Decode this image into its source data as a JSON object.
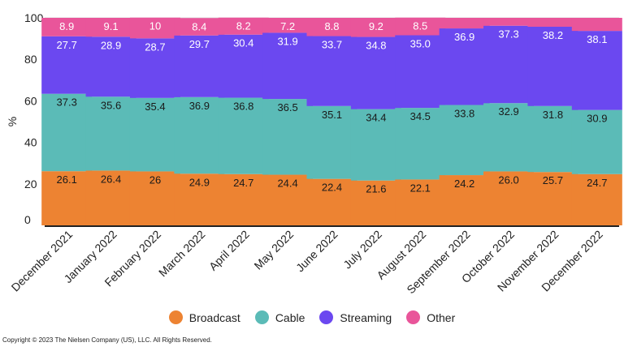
{
  "chart_data": {
    "type": "bar",
    "stacked": true,
    "ylabel": "%",
    "ylim": [
      0,
      100
    ],
    "yticks": [
      0,
      20,
      40,
      60,
      80,
      100
    ],
    "grid": true,
    "legend_position": "bottom",
    "categories": [
      "December 2021",
      "January 2022",
      "February 2022",
      "March 2022",
      "April 2022",
      "May 2022",
      "June 2022",
      "July 2022",
      "August 2022",
      "September 2022",
      "October 2022",
      "November 2022",
      "December 2022"
    ],
    "series": [
      {
        "name": "Broadcast",
        "color": "#ED8332",
        "label_color": "#1a1a1a",
        "values": [
          26.1,
          26.4,
          26,
          24.9,
          24.7,
          24.4,
          22.4,
          21.6,
          22.1,
          24.2,
          26.0,
          25.7,
          24.7
        ],
        "labels": [
          "26.1",
          "26.4",
          "26",
          "24.9",
          "24.7",
          "24.4",
          "22.4",
          "21.6",
          "22.1",
          "24.2",
          "26.0",
          "25.7",
          "24.7"
        ]
      },
      {
        "name": "Cable",
        "color": "#5BBBB7",
        "label_color": "#1a1a1a",
        "values": [
          37.3,
          35.6,
          35.4,
          36.9,
          36.8,
          36.5,
          35.1,
          34.4,
          34.5,
          33.8,
          32.9,
          31.8,
          30.9
        ],
        "labels": [
          "37.3",
          "35.6",
          "35.4",
          "36.9",
          "36.8",
          "36.5",
          "35.1",
          "34.4",
          "34.5",
          "33.8",
          "32.9",
          "31.8",
          "30.9"
        ]
      },
      {
        "name": "Streaming",
        "color": "#6B48F0",
        "label_color": "#ffffff",
        "values": [
          27.7,
          28.9,
          28.7,
          29.7,
          30.4,
          31.9,
          33.7,
          34.8,
          35.0,
          36.9,
          37.3,
          38.2,
          38.1
        ],
        "labels": [
          "27.7",
          "28.9",
          "28.7",
          "29.7",
          "30.4",
          "31.9",
          "33.7",
          "34.8",
          "35.0",
          "36.9",
          "37.3",
          "38.2",
          "38.1"
        ]
      },
      {
        "name": "Other",
        "color": "#E9559A",
        "label_color": "#ffffff",
        "values": [
          8.9,
          9.1,
          10,
          8.4,
          8.2,
          7.2,
          8.8,
          9.2,
          8.5,
          5.1,
          3.8,
          4.3,
          6.3
        ],
        "labels": [
          "8.9",
          "9.1",
          "10",
          "8.4",
          "8.2",
          "7.2",
          "8.8",
          "9.2",
          "8.5",
          "",
          "",
          "",
          ""
        ]
      }
    ]
  },
  "footer": {
    "copyright": "Copyright © 2023 The Nielsen Company (US), LLC. All Rights Reserved."
  }
}
